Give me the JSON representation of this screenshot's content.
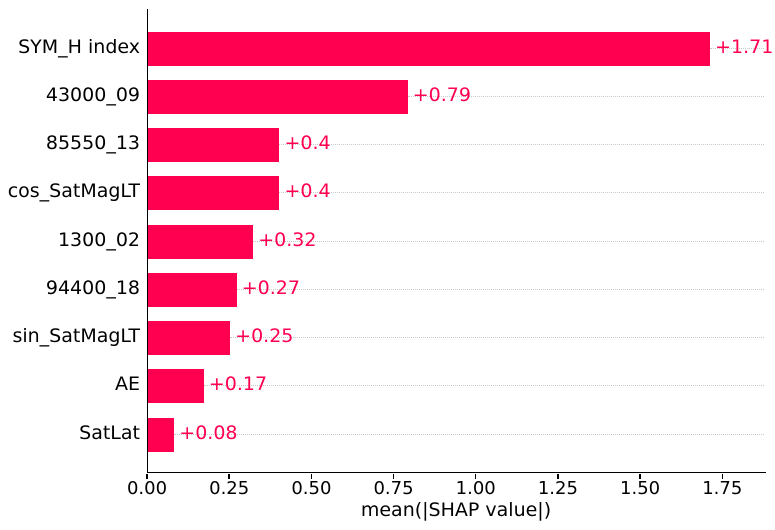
{
  "chart_data": {
    "type": "bar",
    "orientation": "horizontal",
    "title": "",
    "xlabel": "mean(|SHAP value|)",
    "ylabel": "",
    "categories": [
      "SYM_H index",
      "43000_09",
      "85550_13",
      "cos_SatMagLT",
      "1300_02",
      "94400_18",
      "sin_SatMagLT",
      "AE",
      "SatLat"
    ],
    "values": [
      1.71,
      0.79,
      0.4,
      0.4,
      0.32,
      0.27,
      0.25,
      0.17,
      0.08
    ],
    "value_labels": [
      "+1.71",
      "+0.79",
      "+0.4",
      "+0.4",
      "+0.32",
      "+0.27",
      "+0.25",
      "+0.17",
      "+0.08"
    ],
    "xtick_labels": [
      "0.00",
      "0.25",
      "0.50",
      "0.75",
      "1.00",
      "1.25",
      "1.50",
      "1.75"
    ],
    "xlim": [
      0,
      1.88
    ],
    "grid": "dotted-horizontal-per-row",
    "legend": "none",
    "colors": {
      "bar": "#ff0051",
      "value_label": "#ff0051",
      "gridline": "#c9c9c9",
      "axis": "#000000",
      "tick_label": "#000000",
      "background": "#ffffff"
    }
  }
}
